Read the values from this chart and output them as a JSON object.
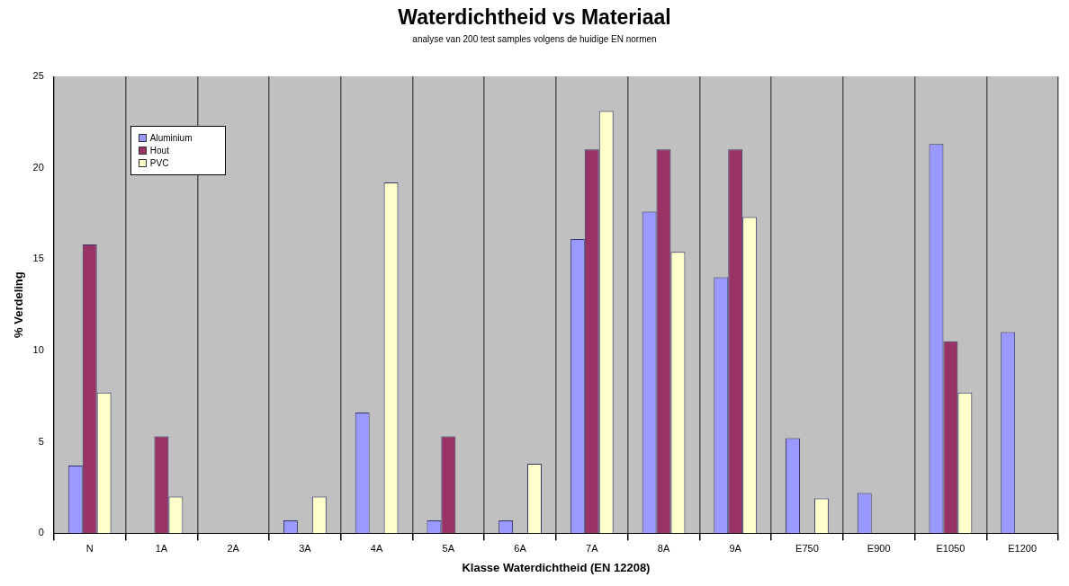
{
  "chart_data": {
    "type": "bar",
    "title": "Waterdichtheid vs Materiaal",
    "subtitle": "analyse van 200 test samples volgens de huidige EN normen",
    "xlabel": "Klasse Waterdichtheid (EN 12208)",
    "ylabel": "% Verdeling",
    "categories": [
      "N",
      "1A",
      "2A",
      "3A",
      "4A",
      "5A",
      "6A",
      "7A",
      "8A",
      "9A",
      "E750",
      "E900",
      "E1050",
      "E1200"
    ],
    "series": [
      {
        "name": "Aluminium",
        "color": "#9999ff",
        "values": [
          3.7,
          0,
          0,
          0.7,
          6.6,
          0.7,
          0.7,
          16.1,
          17.6,
          14.0,
          5.2,
          2.2,
          21.3,
          11.0
        ]
      },
      {
        "name": "Hout",
        "color": "#993366",
        "values": [
          15.8,
          5.3,
          0,
          0,
          0,
          5.3,
          0,
          21.0,
          21.0,
          21.0,
          0,
          0,
          10.5,
          0
        ]
      },
      {
        "name": "PVC",
        "color": "#ffffcc",
        "values": [
          7.7,
          2.0,
          0,
          2.0,
          19.2,
          0,
          3.8,
          23.1,
          15.4,
          17.3,
          1.9,
          0,
          7.7,
          0
        ]
      }
    ],
    "ylim": [
      0,
      25
    ],
    "yticks": [
      0,
      5,
      10,
      15,
      20,
      25
    ],
    "grid": "x",
    "legend": "top left"
  }
}
